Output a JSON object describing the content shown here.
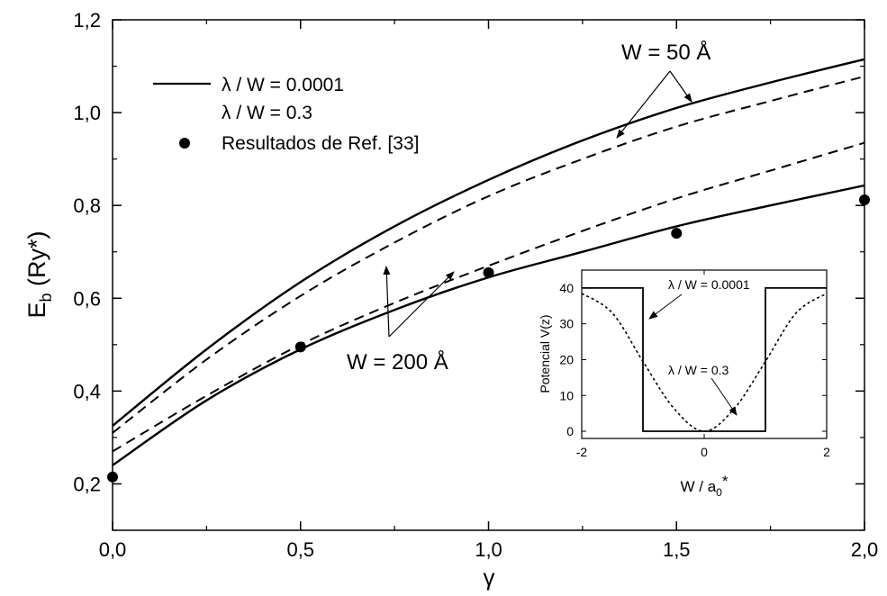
{
  "chart_data": [
    {
      "type": "line",
      "xlabel": "γ",
      "ylabel_main": "E",
      "ylabel_sub": "b",
      "ylabel_rest": " (Ry*)",
      "xlim": [
        0,
        2.0
      ],
      "ylim": [
        0.1,
        1.2
      ],
      "xticks": [
        {
          "v": 0.0,
          "label": "0,0"
        },
        {
          "v": 0.5,
          "label": "0,5"
        },
        {
          "v": 1.0,
          "label": "1,0"
        },
        {
          "v": 1.5,
          "label": "1,5"
        },
        {
          "v": 2.0,
          "label": "2,0"
        }
      ],
      "yticks": [
        {
          "v": 0.2,
          "label": "0,2"
        },
        {
          "v": 0.4,
          "label": "0,4"
        },
        {
          "v": 0.6,
          "label": "0,6"
        },
        {
          "v": 0.8,
          "label": "0,8"
        },
        {
          "v": 1.0,
          "label": "1,0"
        },
        {
          "v": 1.2,
          "label": "1,2"
        }
      ],
      "grid": false,
      "legend": {
        "position": "top-left",
        "entries": [
          {
            "label": "λ / W = 0.0001",
            "style": "solid"
          },
          {
            "label": "λ / W = 0.3",
            "style": "dashed"
          },
          {
            "label": "Resultados de Ref. [33]",
            "style": "marker"
          }
        ]
      },
      "series": [
        {
          "style": "solid",
          "group": "W50",
          "x": [
            0,
            0.25,
            0.5,
            0.75,
            1.0,
            1.25,
            1.5,
            1.75,
            2.0
          ],
          "y": [
            0.325,
            0.49,
            0.635,
            0.755,
            0.855,
            0.94,
            1.01,
            1.065,
            1.115
          ]
        },
        {
          "style": "dashed",
          "group": "W50",
          "x": [
            0,
            0.25,
            0.5,
            0.75,
            1.0,
            1.25,
            1.5,
            1.75,
            2.0
          ],
          "y": [
            0.31,
            0.468,
            0.605,
            0.72,
            0.82,
            0.9,
            0.97,
            1.025,
            1.078
          ]
        },
        {
          "style": "dashed",
          "group": "W200",
          "x": [
            0,
            0.25,
            0.5,
            0.75,
            1.0,
            1.25,
            1.5,
            1.75,
            2.0
          ],
          "y": [
            0.27,
            0.39,
            0.5,
            0.59,
            0.67,
            0.745,
            0.815,
            0.875,
            0.935
          ]
        },
        {
          "style": "solid",
          "group": "W200",
          "x": [
            0,
            0.25,
            0.5,
            0.75,
            1.0,
            1.25,
            1.5,
            1.75,
            2.0
          ],
          "y": [
            0.24,
            0.38,
            0.49,
            0.575,
            0.645,
            0.7,
            0.755,
            0.8,
            0.843
          ]
        },
        {
          "style": "marker",
          "group": "ref",
          "x": [
            0.0,
            0.5,
            1.0,
            1.5,
            2.0
          ],
          "y": [
            0.215,
            0.495,
            0.655,
            0.74,
            0.812
          ]
        }
      ],
      "annotations": [
        {
          "text": "W = 50 Å"
        },
        {
          "text": "W = 200 Å"
        }
      ]
    },
    {
      "type": "line",
      "inset": true,
      "xlabel_main": "W / a",
      "xlabel_sub": "0",
      "xlabel_sup": "*",
      "ylabel": "Potencial V(z)",
      "xlim": [
        -2,
        2
      ],
      "ylim": [
        -2,
        45
      ],
      "xticks": [
        {
          "v": -2,
          "label": "-2"
        },
        {
          "v": 0,
          "label": "0"
        },
        {
          "v": 2,
          "label": "2"
        }
      ],
      "yticks": [
        {
          "v": 0,
          "label": "0"
        },
        {
          "v": 10,
          "label": "10"
        },
        {
          "v": 20,
          "label": "20"
        },
        {
          "v": 30,
          "label": "30"
        },
        {
          "v": 40,
          "label": "40"
        }
      ],
      "series": [
        {
          "style": "solid",
          "label": "λ / W = 0.0001",
          "x": [
            -2,
            -1,
            -1,
            1,
            1,
            2
          ],
          "y": [
            40,
            40,
            0,
            0,
            40,
            40
          ]
        },
        {
          "style": "dotted",
          "label": "λ / W = 0.3",
          "x": [
            -2,
            -1.5,
            -1,
            -0.5,
            0,
            0.5,
            1,
            1.5,
            2
          ],
          "y": [
            38.5,
            33,
            19.5,
            6.5,
            0,
            6.5,
            19.5,
            33,
            38.5
          ]
        }
      ]
    }
  ]
}
